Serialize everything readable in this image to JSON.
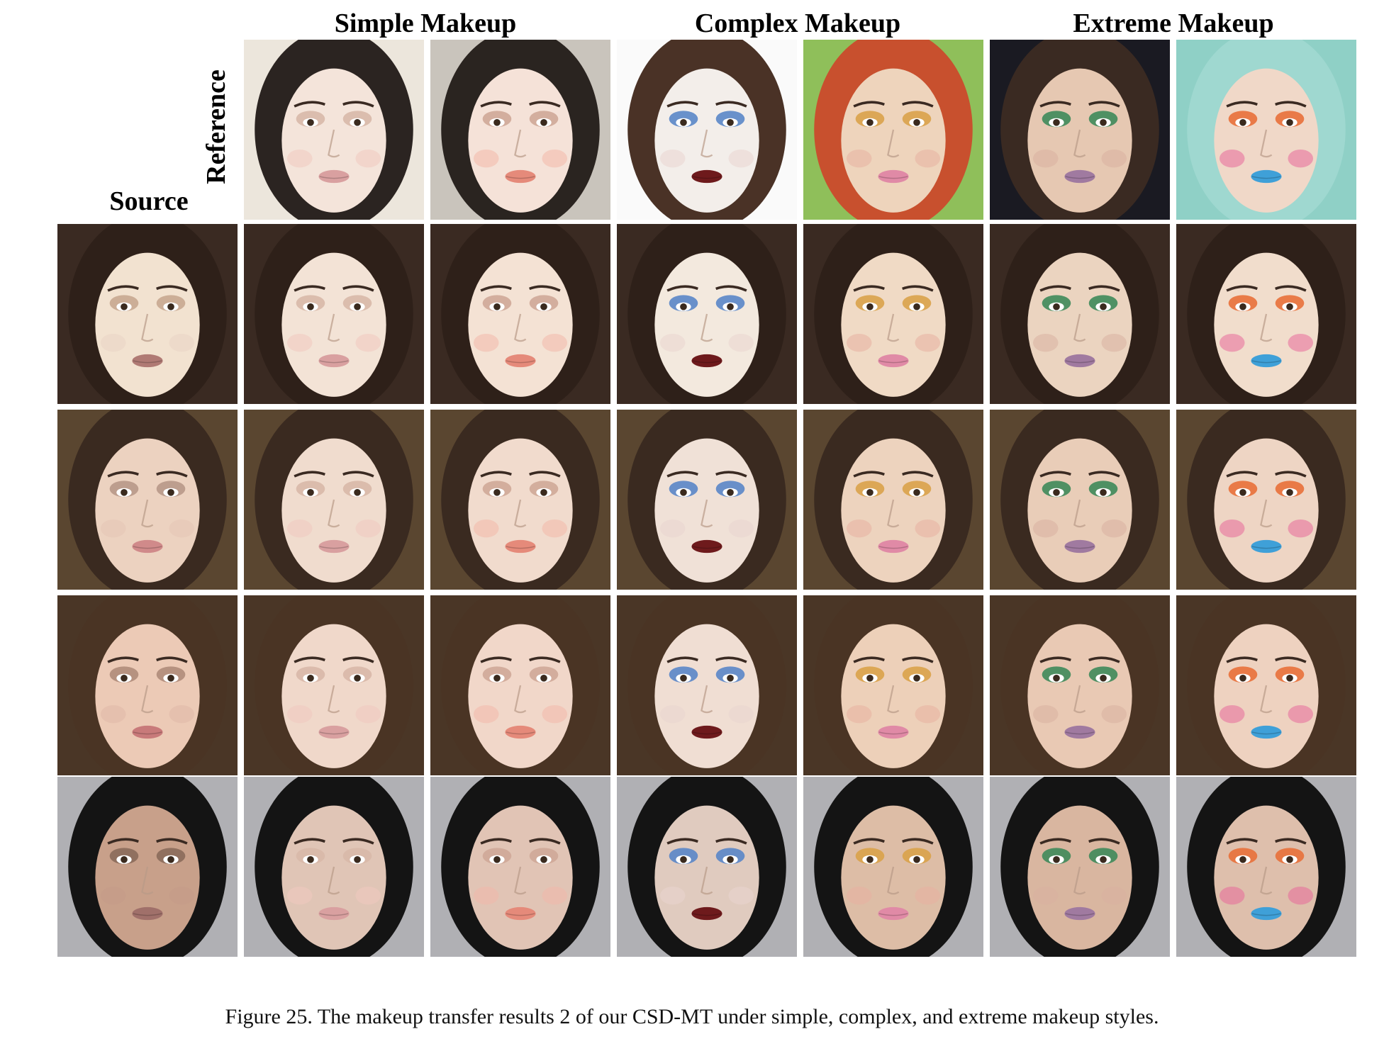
{
  "figure": {
    "group_headers": [
      "Simple Makeup",
      "Complex Makeup",
      "Extreme Makeup"
    ],
    "row_labels": {
      "reference": "Reference",
      "source": "Source"
    },
    "caption": "Figure 25. The makeup transfer results 2 of our CSD-MT under simple, complex, and extreme makeup styles."
  },
  "reference_images": [
    {
      "name": "reference-simple-1",
      "background": "#ece6dc",
      "hair": "#2b2421",
      "skin": "#f4e4da",
      "eyeshadow": "#d8b8a8",
      "lips": "#d9a0a0",
      "blush": "#f0c8c0"
    },
    {
      "name": "reference-simple-2",
      "background": "#c9c4bc",
      "hair": "#2a2420",
      "skin": "#f5e2d8",
      "eyeshadow": "#cfa898",
      "lips": "#e58a7a",
      "blush": "#f2b8aa"
    },
    {
      "name": "reference-complex-1",
      "background": "#fafafa",
      "hair": "#4a3226",
      "skin": "#f3eeea",
      "eyeshadow": "#5a86c8",
      "lips": "#6e1a1c",
      "blush": "#ead6d0"
    },
    {
      "name": "reference-complex-2",
      "background": "#8fbf5a",
      "hair": "#c8502e",
      "skin": "#eed4bc",
      "eyeshadow": "#d9a24a",
      "lips": "#e08aa6",
      "blush": "#e8b0a0"
    },
    {
      "name": "reference-extreme-1",
      "background": "#1a1a22",
      "hair": "#3a2a22",
      "skin": "#e6c8b2",
      "eyeshadow": "#3e8a5a",
      "lips": "#a07aa0",
      "blush": "#d8b0a0"
    },
    {
      "name": "reference-extreme-2",
      "background": "#8fd0c6",
      "hair": "#9fd8d0",
      "skin": "#f0d8c8",
      "eyeshadow": "#e8703a",
      "lips": "#3fa0d8",
      "blush": "#e86a9a"
    }
  ],
  "source_rows": [
    {
      "source": {
        "name": "source-1",
        "background": "#3a2a22",
        "hair": "#2e2019",
        "skin": "#f2e2d0",
        "eyeshadow": "#c8a890",
        "lips": "#b07a74",
        "blush": "#ead4c4"
      },
      "results_label": "results-row-1"
    },
    {
      "source": {
        "name": "source-2",
        "background": "#5a4630",
        "hair": "#3a2a20",
        "skin": "#ecd2c0",
        "eyeshadow": "#b89888",
        "lips": "#d08a8a",
        "blush": "#e6c4b4"
      },
      "results_label": "results-row-2"
    },
    {
      "source": {
        "name": "source-3",
        "background": "#4a3626",
        "hair": "#4a3424",
        "skin": "#eccab6",
        "eyeshadow": "#b08c7a",
        "lips": "#c87a7a",
        "blush": "#e0b8a8"
      },
      "results_label": "results-row-3"
    },
    {
      "source": {
        "name": "source-4",
        "background": "#b0b0b4",
        "hair": "#141414",
        "skin": "#c8a08a",
        "eyeshadow": "#8a6a5a",
        "lips": "#a0706a",
        "blush": "#c49a88"
      },
      "results_label": "results-row-4"
    }
  ]
}
